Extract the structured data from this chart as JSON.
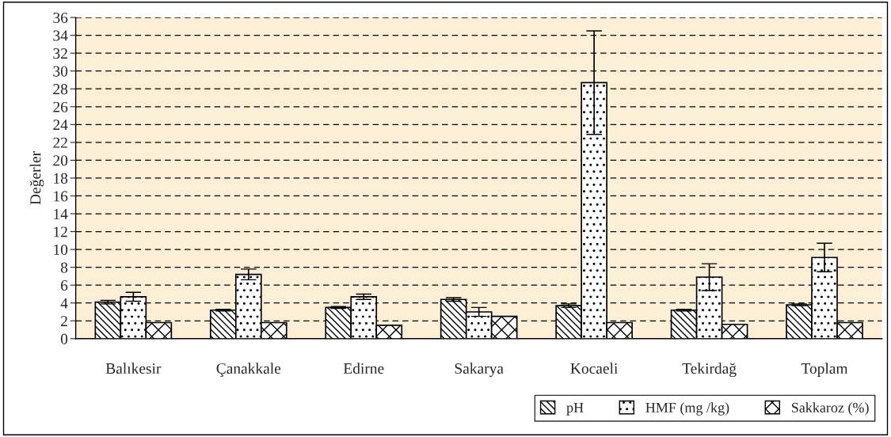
{
  "chart_data": {
    "type": "bar",
    "ylabel": "Değerler",
    "categories": [
      "Balıkesir",
      "Çanakkale",
      "Edirne",
      "Sakarya",
      "Kocaeli",
      "Tekirdağ",
      "Toplam"
    ],
    "series": [
      {
        "name": "pH",
        "color": "#000000",
        "values": [
          4.1,
          3.2,
          3.5,
          4.4,
          3.7,
          3.2,
          3.8
        ],
        "errors": [
          0.2,
          0.1,
          0.1,
          0.2,
          0.2,
          0.1,
          0.1
        ]
      },
      {
        "name": "HMF (mg /kg)",
        "color": "#000000",
        "values": [
          4.7,
          7.2,
          4.7,
          3.0,
          28.7,
          6.9,
          9.1
        ],
        "errors": [
          0.5,
          0.6,
          0.3,
          0.5,
          5.8,
          1.5,
          1.6
        ]
      },
      {
        "name": "Sakkaroz (%)",
        "color": "#000000",
        "values": [
          1.8,
          1.8,
          1.5,
          2.5,
          1.8,
          1.6,
          1.8
        ]
      }
    ],
    "ylim": [
      0,
      36
    ],
    "yticks": [
      0,
      2,
      4,
      6,
      8,
      10,
      12,
      14,
      16,
      18,
      20,
      22,
      24,
      26,
      28,
      30,
      32,
      34,
      36
    ],
    "grid": "y",
    "legend": "bottom right"
  }
}
